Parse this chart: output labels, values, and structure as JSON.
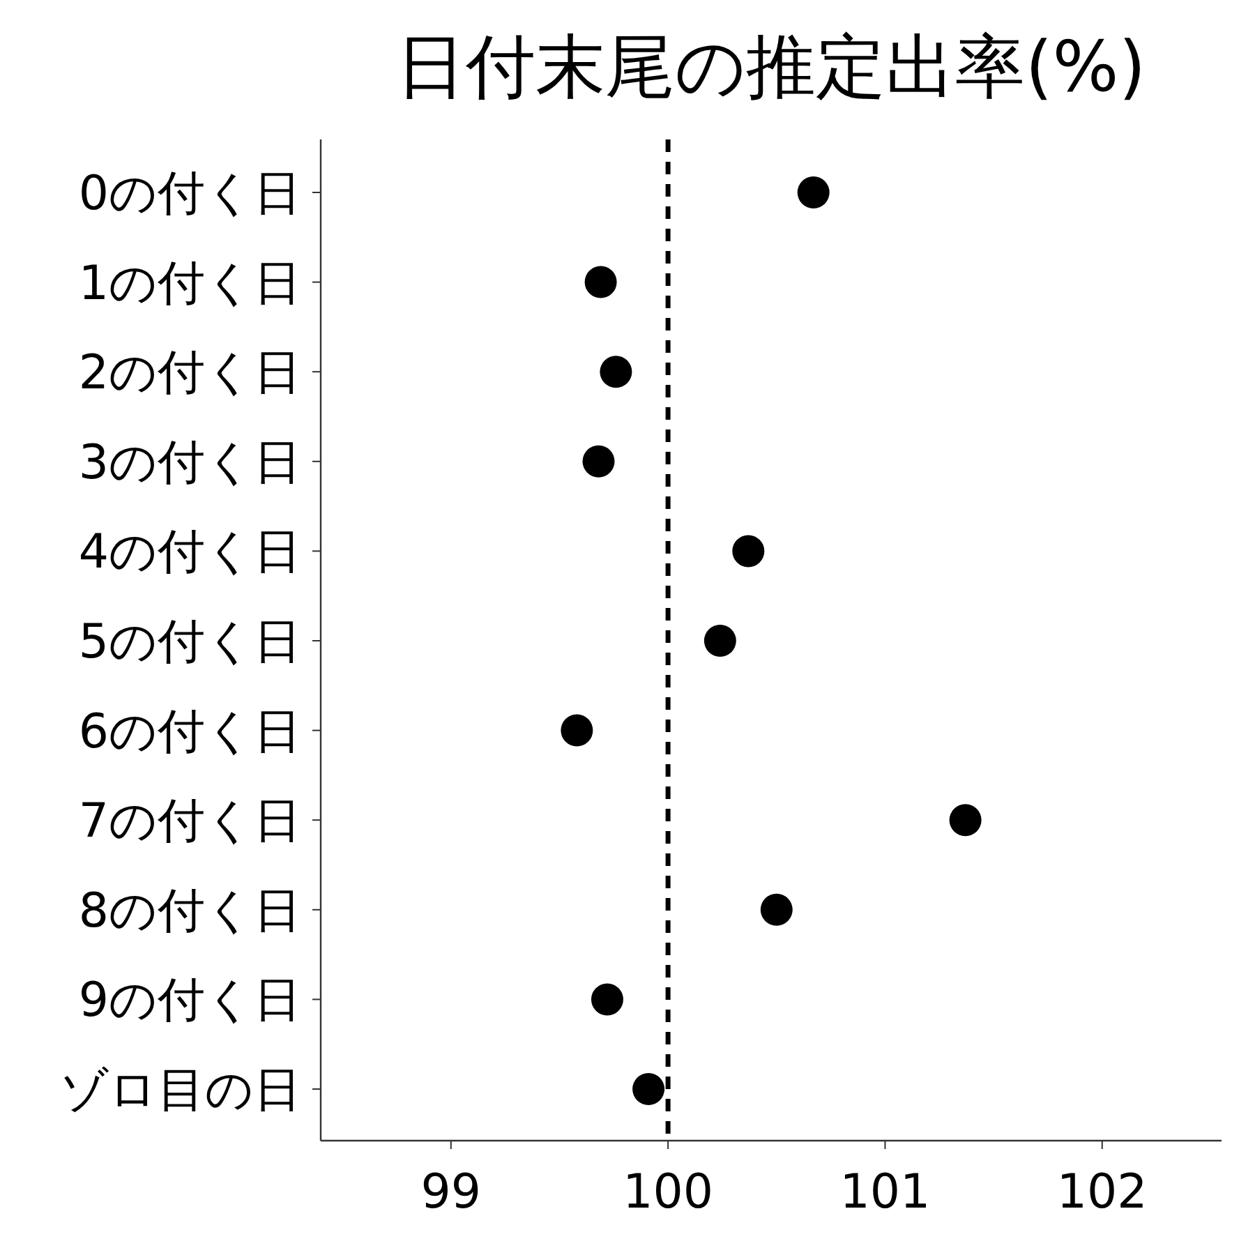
{
  "chart_data": {
    "type": "scatter",
    "orientation": "horizontal",
    "title": "日付末尾の推定出率(%)",
    "categories": [
      "0の付く日",
      "1の付く日",
      "2の付く日",
      "3の付く日",
      "4の付く日",
      "5の付く日",
      "6の付く日",
      "7の付く日",
      "8の付く日",
      "9の付く日",
      "ゾロ目の日"
    ],
    "values": [
      100.67,
      99.69,
      99.76,
      99.68,
      100.37,
      100.24,
      99.58,
      101.37,
      100.5,
      99.72,
      99.91
    ],
    "color": "#000000",
    "marker": "circle",
    "grid": false,
    "xlim": [
      98.4,
      102.55
    ],
    "xticks": [
      99,
      100,
      101,
      102
    ],
    "ref_lines": [
      {
        "axis": "x",
        "value": 100,
        "color": "#000000",
        "line_style": "dashed"
      }
    ]
  }
}
